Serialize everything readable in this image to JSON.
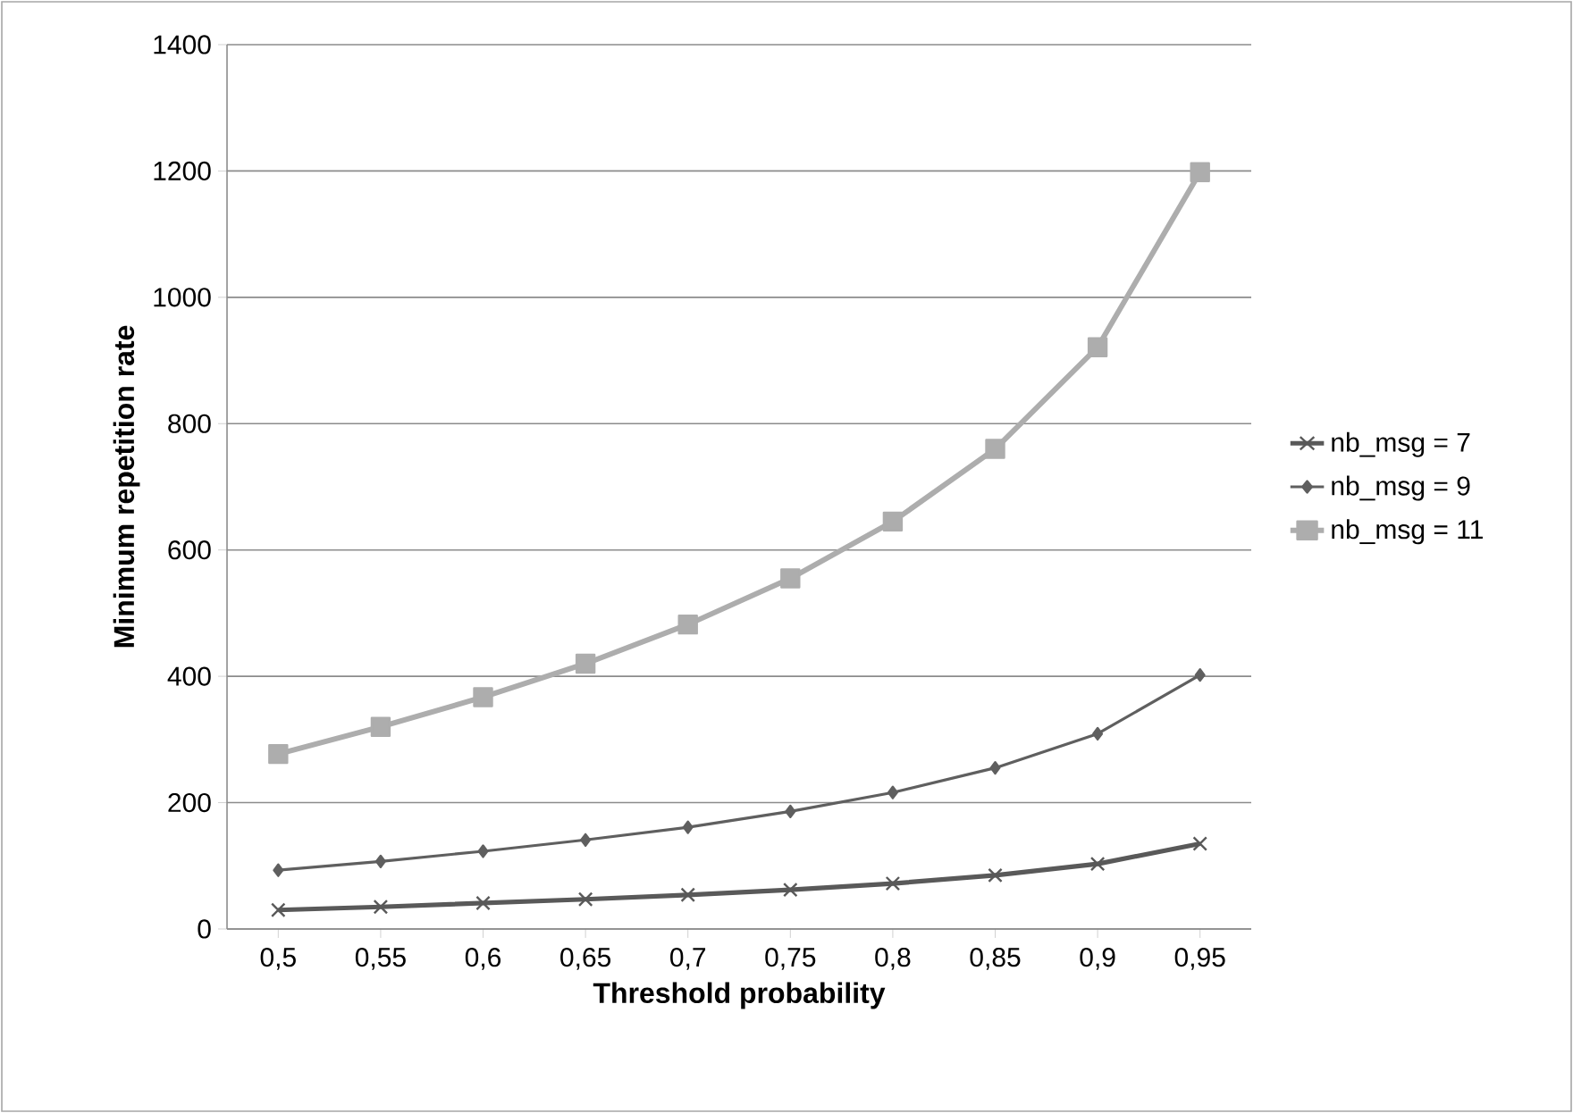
{
  "chart_data": {
    "type": "line",
    "xlabel": "Threshold probability",
    "ylabel": "Minimum repetition rate",
    "categories": [
      "0,5",
      "0,55",
      "0,6",
      "0,65",
      "0,7",
      "0,75",
      "0,8",
      "0,85",
      "0,9",
      "0,95"
    ],
    "series": [
      {
        "name": "nb_msg = 7",
        "color": "#595959",
        "marker": "cross",
        "values": [
          30,
          35,
          41,
          47,
          54,
          62,
          72,
          85,
          103,
          135
        ]
      },
      {
        "name": "nb_msg = 9",
        "color": "#5f5f5f",
        "marker": "diamond",
        "values": [
          93,
          107,
          123,
          141,
          161,
          186,
          216,
          255,
          309,
          402
        ]
      },
      {
        "name": "nb_msg = 11",
        "color": "#adadad",
        "marker": "square",
        "values": [
          277,
          320,
          367,
          420,
          482,
          555,
          645,
          760,
          921,
          1198
        ]
      }
    ],
    "ylim": [
      0,
      1400
    ],
    "yticks": [
      0,
      200,
      400,
      600,
      800,
      1000,
      1200,
      1400
    ],
    "grid": "y",
    "legend": "right",
    "line_style": "solid"
  }
}
